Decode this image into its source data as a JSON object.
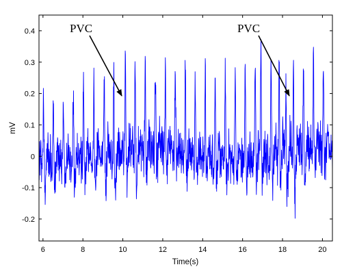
{
  "chart_data": {
    "type": "line",
    "title": "",
    "xlabel": "Time(s)",
    "ylabel": "mV",
    "xlim": [
      5.8,
      20.5
    ],
    "ylim": [
      -0.27,
      0.45
    ],
    "xticks": [
      6,
      8,
      10,
      12,
      14,
      16,
      18,
      20
    ],
    "yticks": [
      -0.2,
      -0.1,
      0,
      0.1,
      0.2,
      0.3,
      0.4
    ],
    "grid": false,
    "legend": "none",
    "sampling_rate_hz": 100,
    "series": [
      {
        "name": "",
        "color": "#0000ff",
        "beats": [
          {
            "t": 6.03,
            "peak": 0.25,
            "trough": -0.11
          },
          {
            "t": 6.52,
            "peak": 0.24,
            "trough": -0.1
          },
          {
            "t": 7.03,
            "peak": 0.24,
            "trough": -0.09
          },
          {
            "t": 7.52,
            "peak": 0.26,
            "trough": -0.1
          },
          {
            "t": 8.03,
            "peak": 0.27,
            "trough": -0.08
          },
          {
            "t": 8.55,
            "peak": 0.28,
            "trough": -0.1
          },
          {
            "t": 9.07,
            "peak": 0.29,
            "trough": -0.12
          },
          {
            "t": 9.55,
            "peak": 0.31,
            "trough": -0.16
          },
          {
            "t": 10.13,
            "peak": 0.34,
            "trough": -0.13
          },
          {
            "t": 10.62,
            "peak": 0.3,
            "trough": -0.12
          },
          {
            "t": 11.12,
            "peak": 0.3,
            "trough": -0.09
          },
          {
            "t": 11.63,
            "peak": 0.3,
            "trough": -0.08
          },
          {
            "t": 12.13,
            "peak": 0.3,
            "trough": -0.07
          },
          {
            "t": 12.63,
            "peak": 0.31,
            "trough": -0.07
          },
          {
            "t": 13.13,
            "peak": 0.31,
            "trough": -0.06
          },
          {
            "t": 13.63,
            "peak": 0.31,
            "trough": -0.06
          },
          {
            "t": 14.13,
            "peak": 0.31,
            "trough": -0.06
          },
          {
            "t": 14.63,
            "peak": 0.31,
            "trough": -0.06
          },
          {
            "t": 15.13,
            "peak": 0.31,
            "trough": -0.06
          },
          {
            "t": 15.63,
            "peak": 0.32,
            "trough": -0.06
          },
          {
            "t": 16.13,
            "peak": 0.33,
            "trough": -0.06
          },
          {
            "t": 16.63,
            "peak": 0.34,
            "trough": -0.05
          },
          {
            "t": 16.92,
            "peak": 0.38,
            "trough": -0.07
          },
          {
            "t": 17.43,
            "peak": 0.35,
            "trough": -0.08
          },
          {
            "t": 17.83,
            "peak": 0.34,
            "trough": -0.1
          },
          {
            "t": 18.17,
            "peak": 0.3,
            "trough": -0.14
          },
          {
            "t": 18.55,
            "peak": 0.38,
            "trough": -0.19
          },
          {
            "t": 19.05,
            "peak": 0.34,
            "trough": -0.12
          },
          {
            "t": 19.55,
            "peak": 0.33,
            "trough": -0.08
          },
          {
            "t": 20.05,
            "peak": 0.33,
            "trough": -0.06
          }
        ]
      }
    ],
    "annotations": [
      {
        "text": "PVC",
        "arrow_tip": [
          10.0,
          0.19
        ]
      },
      {
        "text": "PVC",
        "arrow_tip": [
          18.3,
          0.19
        ]
      }
    ]
  }
}
